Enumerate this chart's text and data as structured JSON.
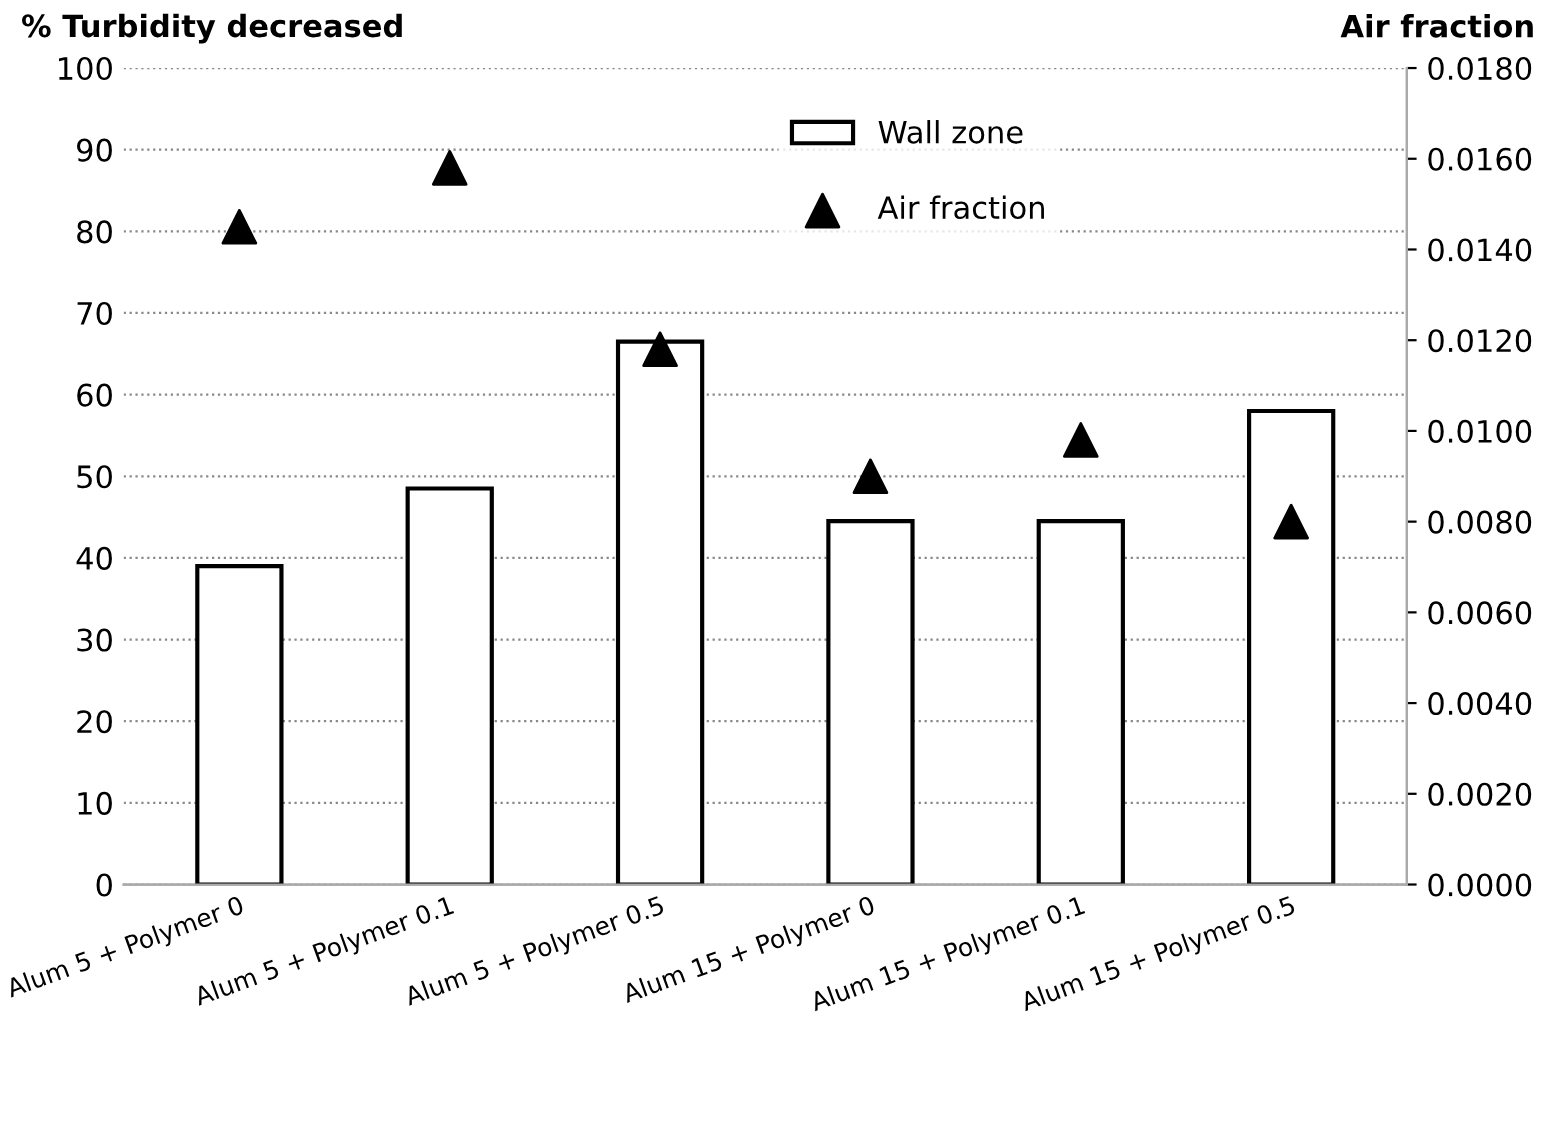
{
  "chart_data": {
    "type": "bar",
    "ylabel": "% Turbidity decreased",
    "y2label": "Air fraction",
    "categories": [
      "Alum 5 + Polymer 0",
      "Alum 5 + Polymer 0.1",
      "Alum 5 + Polymer 0.5",
      "Alum 15 + Polymer 0",
      "Alum 15 + Polymer 0.1",
      "Alum 15 + Polymer 0.5"
    ],
    "series": [
      {
        "name": "Wall zone",
        "color": "#ffffff",
        "values": [
          39,
          48.5,
          66.5,
          44.5,
          44.5,
          58
        ]
      },
      {
        "name": "Air fraction",
        "type": "scatter",
        "axis": "y2",
        "marker": "triangle",
        "color": "#000000",
        "values": [
          0.0145,
          0.0158,
          0.0118,
          0.009,
          0.0098,
          0.008
        ]
      }
    ],
    "ylim": [
      0,
      100
    ],
    "yticks": [
      0,
      10,
      20,
      30,
      40,
      50,
      60,
      70,
      80,
      90,
      100
    ],
    "y2lim": [
      0,
      0.018
    ],
    "y2ticks": [
      {
        "value": 0,
        "label": "0.0000"
      },
      {
        "value": 0.002,
        "label": "0.0020"
      },
      {
        "value": 0.004,
        "label": "0.0040"
      },
      {
        "value": 0.006,
        "label": "0.0060"
      },
      {
        "value": 0.008,
        "label": "0.0080"
      },
      {
        "value": 0.01,
        "label": "0.0100"
      },
      {
        "value": 0.012,
        "label": "0.0120"
      },
      {
        "value": 0.014,
        "label": "0.0140"
      },
      {
        "value": 0.016,
        "label": "0.0160"
      },
      {
        "value": 0.018,
        "label": "0.0180"
      }
    ],
    "grid": "y",
    "legend": "top"
  }
}
